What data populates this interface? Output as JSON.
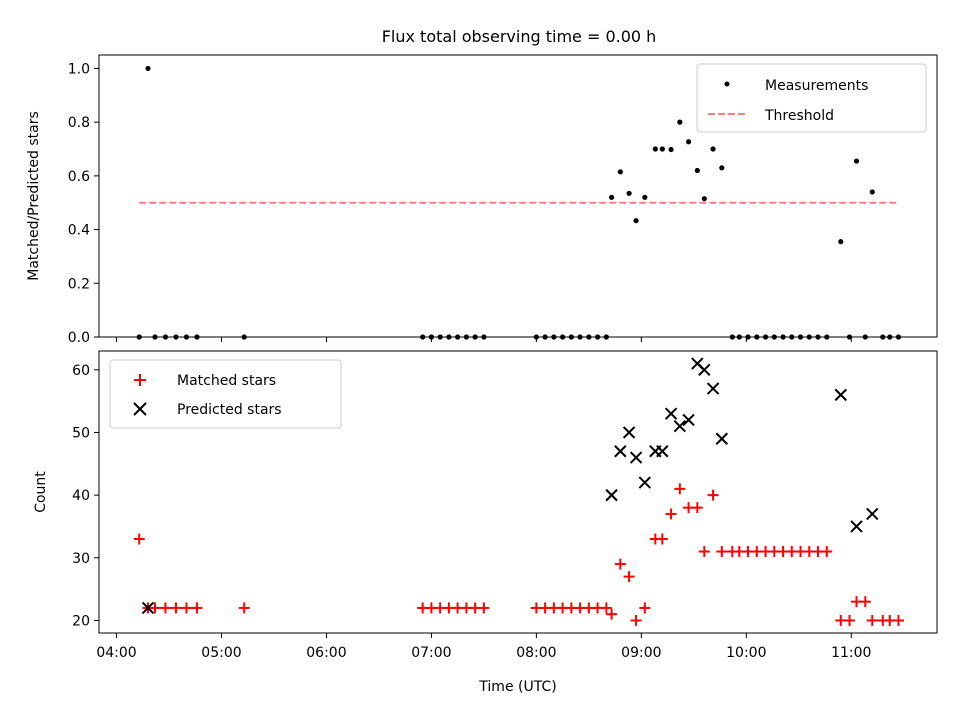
{
  "chart_data": [
    {
      "type": "scatter",
      "title": "Flux total observing time = 0.00 h",
      "xlabel": "",
      "ylabel": "Matched/Predicted stars",
      "ylim": [
        0,
        1.05
      ],
      "yticks": [
        "0.0",
        "0.2",
        "0.4",
        "0.6",
        "0.8",
        "1.0"
      ],
      "ytick_values": [
        0,
        0.2,
        0.4,
        0.6,
        0.8,
        1.0
      ],
      "legend": {
        "placement": "top-right",
        "entries": [
          "Measurements",
          "Threshold"
        ]
      },
      "series": [
        {
          "name": "Measurements",
          "color": "#000000",
          "points": [
            [
              "04:13",
              0
            ],
            [
              "04:18",
              1.0
            ],
            [
              "04:22",
              0
            ],
            [
              "04:28",
              0
            ],
            [
              "04:34",
              0
            ],
            [
              "04:40",
              0
            ],
            [
              "04:46",
              0
            ],
            [
              "05:13",
              0
            ],
            [
              "06:55",
              0
            ],
            [
              "07:00",
              0
            ],
            [
              "07:05",
              0
            ],
            [
              "07:10",
              0
            ],
            [
              "07:15",
              0
            ],
            [
              "07:20",
              0
            ],
            [
              "07:25",
              0
            ],
            [
              "07:30",
              0
            ],
            [
              "08:00",
              0
            ],
            [
              "08:05",
              0
            ],
            [
              "08:10",
              0
            ],
            [
              "08:15",
              0
            ],
            [
              "08:20",
              0
            ],
            [
              "08:25",
              0
            ],
            [
              "08:30",
              0
            ],
            [
              "08:35",
              0
            ],
            [
              "08:40",
              0
            ],
            [
              "08:43",
              0.52
            ],
            [
              "08:48",
              0.615
            ],
            [
              "08:53",
              0.535
            ],
            [
              "08:57",
              0.433
            ],
            [
              "09:02",
              0.52
            ],
            [
              "09:08",
              0.7
            ],
            [
              "09:12",
              0.7
            ],
            [
              "09:17",
              0.698
            ],
            [
              "09:22",
              0.8
            ],
            [
              "09:27",
              0.727
            ],
            [
              "09:32",
              0.62
            ],
            [
              "09:36",
              0.515
            ],
            [
              "09:41",
              0.7
            ],
            [
              "09:46",
              0.63
            ],
            [
              "09:52",
              0
            ],
            [
              "09:56",
              0
            ],
            [
              "10:01",
              0
            ],
            [
              "10:06",
              0
            ],
            [
              "10:11",
              0
            ],
            [
              "10:16",
              0
            ],
            [
              "10:21",
              0
            ],
            [
              "10:26",
              0
            ],
            [
              "10:31",
              0
            ],
            [
              "10:36",
              0
            ],
            [
              "10:41",
              0
            ],
            [
              "10:46",
              0
            ],
            [
              "10:54",
              0.355
            ],
            [
              "10:59",
              0
            ],
            [
              "11:03",
              0.655
            ],
            [
              "11:08",
              0
            ],
            [
              "11:12",
              0.54
            ],
            [
              "11:18",
              0
            ],
            [
              "11:22",
              0
            ],
            [
              "11:27",
              0
            ]
          ]
        },
        {
          "name": "Threshold",
          "color": "#ff8080",
          "style": "dashed",
          "points": [
            [
              "04:13",
              0.5
            ],
            [
              "11:27",
              0.5
            ]
          ]
        }
      ]
    },
    {
      "type": "scatter",
      "title": "",
      "xlabel": "Time (UTC)",
      "ylabel": "Count",
      "ylim": [
        18,
        63
      ],
      "yticks": [
        "20",
        "30",
        "40",
        "50",
        "60"
      ],
      "ytick_values": [
        20,
        30,
        40,
        50,
        60
      ],
      "xticks": [
        "04:00",
        "05:00",
        "06:00",
        "07:00",
        "08:00",
        "09:00",
        "10:00",
        "11:00"
      ],
      "xtick_values": [
        "04:00",
        "05:00",
        "06:00",
        "07:00",
        "08:00",
        "09:00",
        "10:00",
        "11:00"
      ],
      "xlim": [
        "03:50",
        "11:49"
      ],
      "legend": {
        "placement": "top-left",
        "entries": [
          "Matched stars",
          "Predicted stars"
        ]
      },
      "series": [
        {
          "name": "Matched stars",
          "color": "#ff0000",
          "marker": "plus",
          "points": [
            [
              "04:13",
              33
            ],
            [
              "04:18",
              22
            ],
            [
              "04:22",
              22
            ],
            [
              "04:28",
              22
            ],
            [
              "04:34",
              22
            ],
            [
              "04:40",
              22
            ],
            [
              "04:46",
              22
            ],
            [
              "05:13",
              22
            ],
            [
              "06:55",
              22
            ],
            [
              "07:00",
              22
            ],
            [
              "07:05",
              22
            ],
            [
              "07:10",
              22
            ],
            [
              "07:15",
              22
            ],
            [
              "07:20",
              22
            ],
            [
              "07:25",
              22
            ],
            [
              "07:30",
              22
            ],
            [
              "08:00",
              22
            ],
            [
              "08:05",
              22
            ],
            [
              "08:10",
              22
            ],
            [
              "08:15",
              22
            ],
            [
              "08:20",
              22
            ],
            [
              "08:25",
              22
            ],
            [
              "08:30",
              22
            ],
            [
              "08:35",
              22
            ],
            [
              "08:40",
              22
            ],
            [
              "08:43",
              21
            ],
            [
              "08:48",
              29
            ],
            [
              "08:53",
              27
            ],
            [
              "08:57",
              20
            ],
            [
              "09:02",
              22
            ],
            [
              "09:08",
              33
            ],
            [
              "09:12",
              33
            ],
            [
              "09:17",
              37
            ],
            [
              "09:22",
              41
            ],
            [
              "09:27",
              38
            ],
            [
              "09:32",
              38
            ],
            [
              "09:36",
              31
            ],
            [
              "09:41",
              40
            ],
            [
              "09:46",
              31
            ],
            [
              "09:52",
              31
            ],
            [
              "09:56",
              31
            ],
            [
              "10:01",
              31
            ],
            [
              "10:06",
              31
            ],
            [
              "10:11",
              31
            ],
            [
              "10:16",
              31
            ],
            [
              "10:21",
              31
            ],
            [
              "10:26",
              31
            ],
            [
              "10:31",
              31
            ],
            [
              "10:36",
              31
            ],
            [
              "10:41",
              31
            ],
            [
              "10:46",
              31
            ],
            [
              "10:54",
              20
            ],
            [
              "10:59",
              20
            ],
            [
              "11:03",
              23
            ],
            [
              "11:08",
              23
            ],
            [
              "11:12",
              20
            ],
            [
              "11:18",
              20
            ],
            [
              "11:22",
              20
            ],
            [
              "11:27",
              20
            ]
          ]
        },
        {
          "name": "Predicted stars",
          "color": "#000000",
          "marker": "x",
          "points": [
            [
              "04:18",
              22
            ],
            [
              "08:43",
              40
            ],
            [
              "08:48",
              47
            ],
            [
              "08:53",
              50
            ],
            [
              "08:57",
              46
            ],
            [
              "09:02",
              42
            ],
            [
              "09:08",
              47
            ],
            [
              "09:12",
              47
            ],
            [
              "09:17",
              53
            ],
            [
              "09:22",
              51
            ],
            [
              "09:27",
              52
            ],
            [
              "09:32",
              61
            ],
            [
              "09:36",
              60
            ],
            [
              "09:41",
              57
            ],
            [
              "09:46",
              49
            ],
            [
              "10:54",
              56
            ],
            [
              "11:03",
              35
            ],
            [
              "11:12",
              37
            ]
          ]
        }
      ]
    }
  ]
}
